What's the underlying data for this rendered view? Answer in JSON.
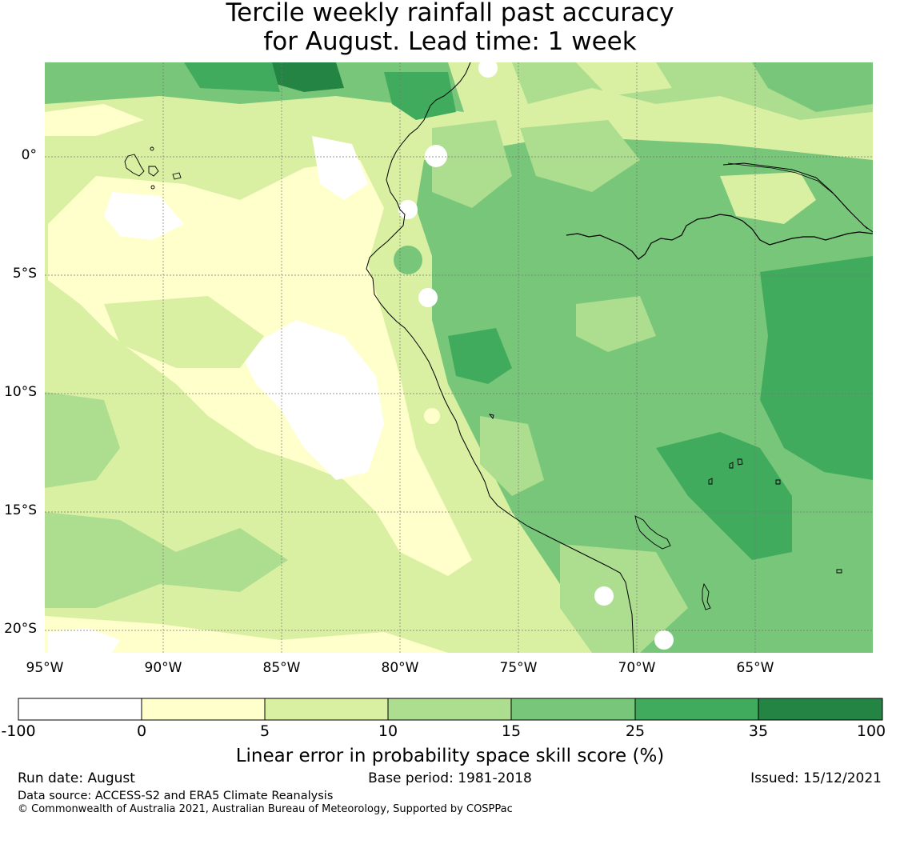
{
  "title": {
    "line1": "Tercile weekly rainfall past accuracy",
    "line2": "for August. Lead time: 1 week"
  },
  "map": {
    "lat_labels": [
      "0°",
      "5°S",
      "10°S",
      "15°S",
      "20°S"
    ],
    "lon_labels": [
      "95°W",
      "90°W",
      "85°W",
      "80°W",
      "75°W",
      "70°W",
      "65°W"
    ],
    "extent": {
      "lon_min": -95,
      "lon_max": -60,
      "lat_min": -21,
      "lat_max": 4
    },
    "gridlines": true
  },
  "colorbar": {
    "ticks": [
      "-100",
      "0",
      "5",
      "10",
      "15",
      "25",
      "35",
      "100"
    ],
    "colors": [
      "#ffffff",
      "#ffffcc",
      "#d9f0a3",
      "#addd8e",
      "#78c679",
      "#41ab5d",
      "#238443"
    ],
    "title": "Linear error in probability space skill score (%)"
  },
  "footer": {
    "run_date": "Run date: August",
    "base_period": "Base period: 1981-2018",
    "issued": "Issued: 15/12/2021",
    "data_source": "Data source: ACCESS-S2 and ERA5 Climate Reanalysis",
    "copyright": "© Commonwealth of Australia 2021, Australian Bureau of Meteorology, Supported by COSPPac"
  }
}
